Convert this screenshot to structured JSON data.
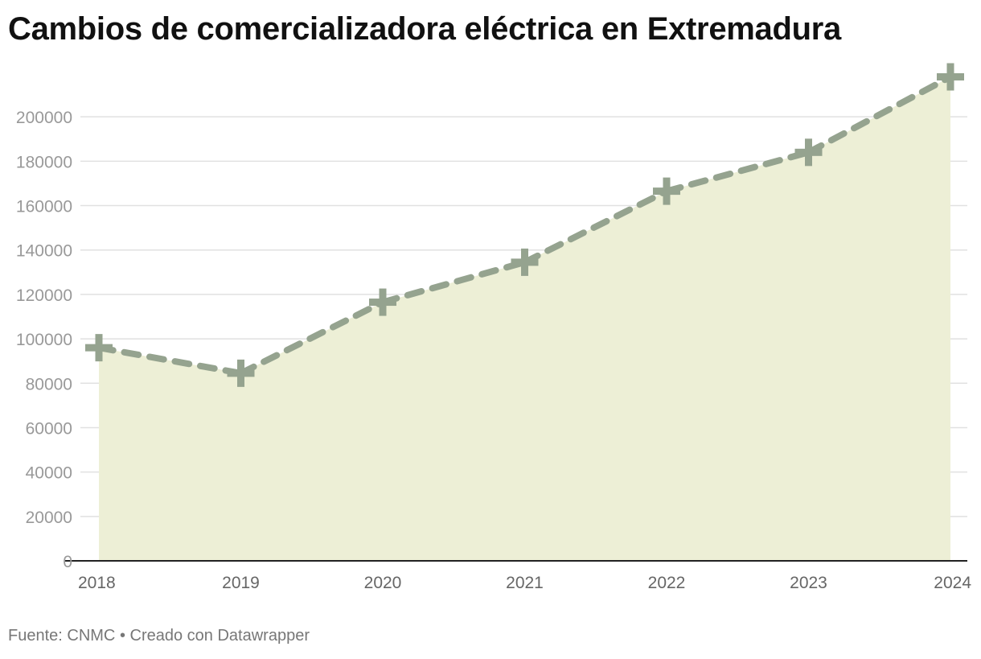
{
  "chart_data": {
    "type": "area",
    "title": "Cambios de comercializadora eléctrica en Extremadura",
    "xlabel": "",
    "ylabel": "",
    "categories": [
      "2018",
      "2019",
      "2020",
      "2021",
      "2022",
      "2023",
      "2024"
    ],
    "series": [
      {
        "name": "Cambios de comercializadora",
        "values": [
          96000,
          84500,
          116500,
          134500,
          166500,
          184000,
          218000
        ]
      }
    ],
    "ylim": [
      0,
      220000
    ],
    "yticks": [
      0,
      20000,
      40000,
      60000,
      80000,
      100000,
      120000,
      140000,
      160000,
      180000,
      200000
    ],
    "ytick_labels": [
      "0",
      "20000",
      "40000",
      "60000",
      "80000",
      "100000",
      "120000",
      "140000",
      "160000",
      "180000",
      "200000"
    ],
    "grid": true,
    "line_style": "dashed",
    "marker": "plus",
    "colors": {
      "area": "#edefd6",
      "line": "#95a38f",
      "grid": "#e1e1e1",
      "axis": "#222222",
      "tick_text": "#999999",
      "xtick_text": "#666666"
    }
  },
  "footer": {
    "source_label": "Fuente: CNMC",
    "separator": "•",
    "credit": "Creado con Datawrapper"
  }
}
